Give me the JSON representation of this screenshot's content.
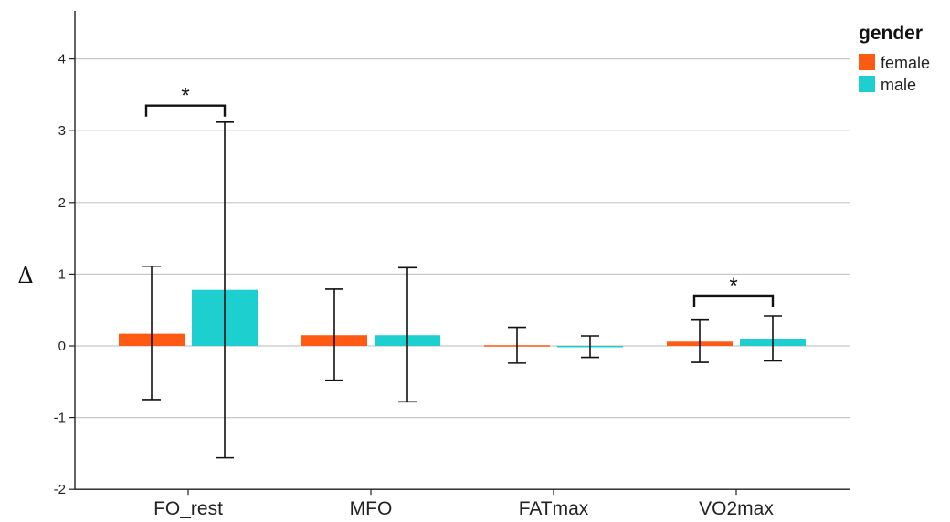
{
  "chart_data": {
    "type": "bar",
    "categories": [
      "FO_rest",
      "MFO",
      "FATmax",
      "VO2max"
    ],
    "series": [
      {
        "name": "female",
        "color": "#ff5a14",
        "values": [
          0.17,
          0.15,
          0.01,
          0.06
        ],
        "error_low": [
          -0.75,
          -0.48,
          -0.24,
          -0.23
        ],
        "error_high": [
          1.11,
          0.79,
          0.26,
          0.36
        ]
      },
      {
        "name": "male",
        "color": "#1ecfcf",
        "values": [
          0.78,
          0.15,
          -0.01,
          0.1
        ],
        "error_low": [
          -1.56,
          -0.78,
          -0.16,
          -0.21
        ],
        "error_high": [
          3.12,
          1.09,
          0.14,
          0.42
        ]
      }
    ],
    "ylabel": "Δ",
    "xlabel": "",
    "ylim": [
      -2,
      4.6
    ],
    "yticks": [
      -2,
      -1,
      0,
      1,
      2,
      3,
      4
    ],
    "grid": "horizontal",
    "legend": {
      "title": "gender",
      "placement": "top-right"
    },
    "annotations": [
      {
        "text": "*",
        "category": "FO_rest",
        "level": 3.35
      },
      {
        "text": "*",
        "category": "VO2max",
        "level": 0.7
      }
    ]
  }
}
